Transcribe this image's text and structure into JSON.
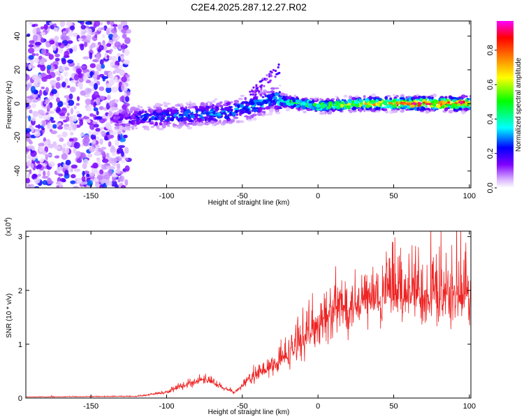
{
  "title": "C2E4.2025.287.12.27.R02",
  "chart_data": [
    {
      "type": "heatmap",
      "xlabel": "Height of straight line (km)",
      "ylabel": "Frequency (Hz)",
      "xlim": [
        -193,
        101
      ],
      "ylim": [
        -50,
        49
      ],
      "xticks": [
        -150,
        -100,
        -50,
        0,
        50,
        100
      ],
      "xtick_labels": [
        "-150",
        "-100",
        "-50",
        "0",
        "50",
        "100"
      ],
      "yticks": [
        -40,
        -20,
        0,
        20,
        40
      ],
      "ytick_labels": [
        "-40",
        "-20",
        "0",
        "20",
        "40"
      ],
      "colorbar": {
        "label": "Normalized spectral amplitude",
        "range": [
          0,
          0.97
        ],
        "ticks": [
          0.0,
          0.2,
          0.4,
          0.6,
          0.8
        ],
        "tick_labels": [
          "0.0",
          "0.2",
          "0.4",
          "0.6",
          "0.8"
        ],
        "colormap": [
          "#ffffff",
          "#cc99ff",
          "#8000ff",
          "#0000ff",
          "#00ffff",
          "#00ff00",
          "#ffff00",
          "#ff8000",
          "#ff0000",
          "#ff00ff"
        ]
      },
      "ridge": [
        {
          "x": -135,
          "f": -9.0,
          "amp": 0.15
        },
        {
          "x": -120,
          "f": -8.5,
          "amp": 0.22
        },
        {
          "x": -100,
          "f": -7.5,
          "amp": 0.28
        },
        {
          "x": -80,
          "f": -6.5,
          "amp": 0.3
        },
        {
          "x": -60,
          "f": -5.0,
          "amp": 0.32
        },
        {
          "x": -40,
          "f": -1.0,
          "amp": 0.35
        },
        {
          "x": -30,
          "f": 3.0,
          "amp": 0.35
        },
        {
          "x": -20,
          "f": 1.0,
          "amp": 0.45
        },
        {
          "x": 0,
          "f": -1.5,
          "amp": 0.55
        },
        {
          "x": 30,
          "f": 0.0,
          "amp": 0.7
        },
        {
          "x": 60,
          "f": 0.0,
          "amp": 0.85
        },
        {
          "x": 100,
          "f": 0.0,
          "amp": 0.9
        }
      ],
      "noise_region": {
        "x": [
          -193,
          -125
        ],
        "f": [
          -50,
          49
        ],
        "amp": 0.3
      }
    },
    {
      "type": "line",
      "xlabel": "Height of straight line (km)",
      "ylabel": "SNR (10 * v/v)",
      "scale_label": "(x10",
      "scale_exponent": "4",
      "xlim": [
        -193,
        101
      ],
      "ylim": [
        0,
        3.1
      ],
      "xticks": [
        -150,
        -100,
        -50,
        0,
        50,
        100
      ],
      "xtick_labels": [
        "-150",
        "-100",
        "-50",
        "0",
        "50",
        "100"
      ],
      "yticks": [
        0,
        1,
        2,
        3
      ],
      "ytick_labels": [
        "0",
        "1",
        "2",
        "3"
      ],
      "color": "#ee2222",
      "envelope": [
        {
          "x": -193,
          "y": 0.02
        },
        {
          "x": -120,
          "y": 0.03
        },
        {
          "x": -100,
          "y": 0.1
        },
        {
          "x": -85,
          "y": 0.25
        },
        {
          "x": -75,
          "y": 0.35
        },
        {
          "x": -65,
          "y": 0.2
        },
        {
          "x": -55,
          "y": 0.1
        },
        {
          "x": -45,
          "y": 0.35
        },
        {
          "x": -30,
          "y": 0.55
        },
        {
          "x": -20,
          "y": 0.75
        },
        {
          "x": -10,
          "y": 1.05
        },
        {
          "x": 0,
          "y": 1.3
        },
        {
          "x": 10,
          "y": 1.5
        },
        {
          "x": 25,
          "y": 1.7
        },
        {
          "x": 40,
          "y": 1.75
        },
        {
          "x": 55,
          "y": 1.85
        },
        {
          "x": 70,
          "y": 1.85
        },
        {
          "x": 85,
          "y": 1.8
        },
        {
          "x": 101,
          "y": 1.75
        }
      ]
    }
  ]
}
